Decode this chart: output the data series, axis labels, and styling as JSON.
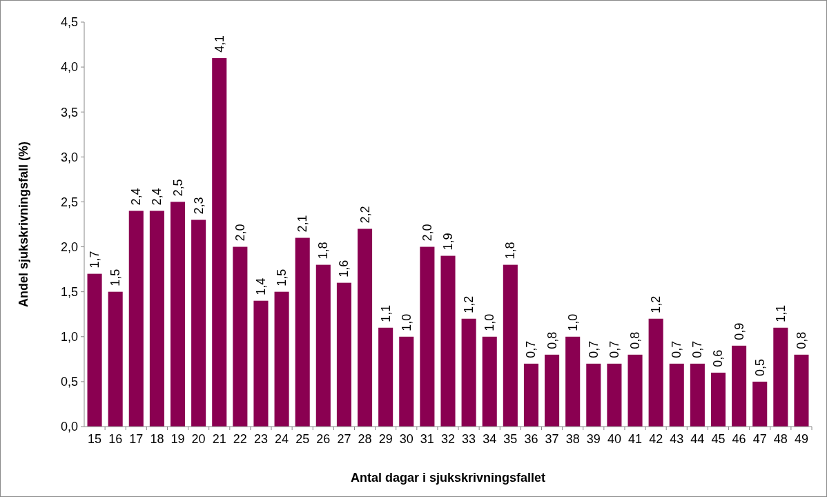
{
  "chart_data": {
    "type": "bar",
    "xlabel": "Antal dagar i sjukskrivningsfallet",
    "ylabel": "Andel sjukskrivningsfall (%)",
    "categories": [
      "15",
      "16",
      "17",
      "18",
      "19",
      "20",
      "21",
      "22",
      "23",
      "24",
      "25",
      "26",
      "27",
      "28",
      "29",
      "30",
      "31",
      "32",
      "33",
      "34",
      "35",
      "36",
      "37",
      "38",
      "39",
      "40",
      "41",
      "42",
      "43",
      "44",
      "45",
      "46",
      "47",
      "48",
      "49"
    ],
    "values": [
      1.7,
      1.5,
      2.4,
      2.4,
      2.5,
      2.3,
      4.1,
      2.0,
      1.4,
      1.5,
      2.1,
      1.8,
      1.6,
      2.2,
      1.1,
      1.0,
      2.0,
      1.9,
      1.2,
      1.0,
      1.8,
      0.7,
      0.8,
      1.0,
      0.7,
      0.7,
      0.8,
      1.2,
      0.7,
      0.7,
      0.6,
      0.9,
      0.5,
      1.1,
      0.8
    ],
    "value_labels": [
      "1,7",
      "1,5",
      "2,4",
      "2,4",
      "2,5",
      "2,3",
      "4,1",
      "2,0",
      "1,4",
      "1,5",
      "2,1",
      "1,8",
      "1,6",
      "2,2",
      "1,1",
      "1,0",
      "2,0",
      "1,9",
      "1,2",
      "1,0",
      "1,8",
      "0,7",
      "0,8",
      "1,0",
      "0,7",
      "0,7",
      "0,8",
      "1,2",
      "0,7",
      "0,7",
      "0,6",
      "0,9",
      "0,5",
      "1,1",
      "0,8"
    ],
    "color": "#8a0051",
    "ylim": [
      0,
      4.5
    ],
    "yticks": [
      {
        "value": 0,
        "label": "0,0"
      },
      {
        "value": 0.5,
        "label": "0,5"
      },
      {
        "value": 1,
        "label": "1,0"
      },
      {
        "value": 1.5,
        "label": "1,5"
      },
      {
        "value": 2,
        "label": "2,0"
      },
      {
        "value": 2.5,
        "label": "2,5"
      },
      {
        "value": 3,
        "label": "3,0"
      },
      {
        "value": 3.5,
        "label": "3,5"
      },
      {
        "value": 4,
        "label": "4,0"
      },
      {
        "value": 4.5,
        "label": "4,5"
      }
    ],
    "grid": false
  }
}
